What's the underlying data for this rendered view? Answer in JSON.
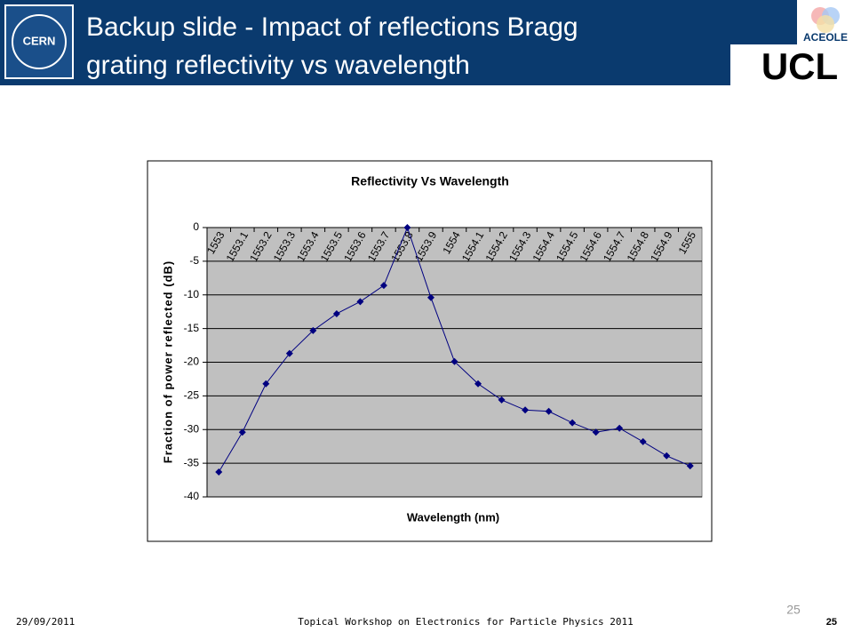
{
  "slide": {
    "title_lines": [
      "Backup slide - Impact of reflections Bragg",
      "grating reflectivity vs wavelength"
    ],
    "logos": {
      "left": "CERN",
      "right_top": "ACEOLE",
      "right_bottom": "UCL"
    },
    "slide_number": "25",
    "footer": {
      "date": "29/09/2011",
      "event": "Topical Workshop on Electronics for Particle Physics 2011",
      "page": "25"
    }
  },
  "chart_data": {
    "type": "line",
    "title": "Reflectivity Vs Wavelength",
    "x_label": "Wavelength (nm)",
    "y_label": "Fraction of power reflected (dB)",
    "categories": [
      "1553",
      "1553.1",
      "1553.2",
      "1553.3",
      "1553.4",
      "1553.5",
      "1553.6",
      "1553.7",
      "1553.8",
      "1553.9",
      "1554",
      "1554.1",
      "1554.2",
      "1554.3",
      "1554.4",
      "1554.5",
      "1554.6",
      "1554.7",
      "1554.8",
      "1554.9",
      "1555"
    ],
    "values": [
      -36.3,
      -30.4,
      -23.2,
      -18.7,
      -15.3,
      -12.8,
      -11.0,
      -8.6,
      0,
      -10.4,
      -19.9,
      -23.2,
      -25.6,
      -27.1,
      -27.3,
      -29.0,
      -30.4,
      -29.8,
      -31.8,
      -33.9,
      -35.4
    ],
    "color": "#000080",
    "plot_background": "#c0c0c0",
    "ylim": [
      -40,
      0
    ],
    "yticks": [
      -40,
      -35,
      -30,
      -25,
      -20,
      -15,
      -10,
      -5,
      0
    ],
    "grid": true
  }
}
